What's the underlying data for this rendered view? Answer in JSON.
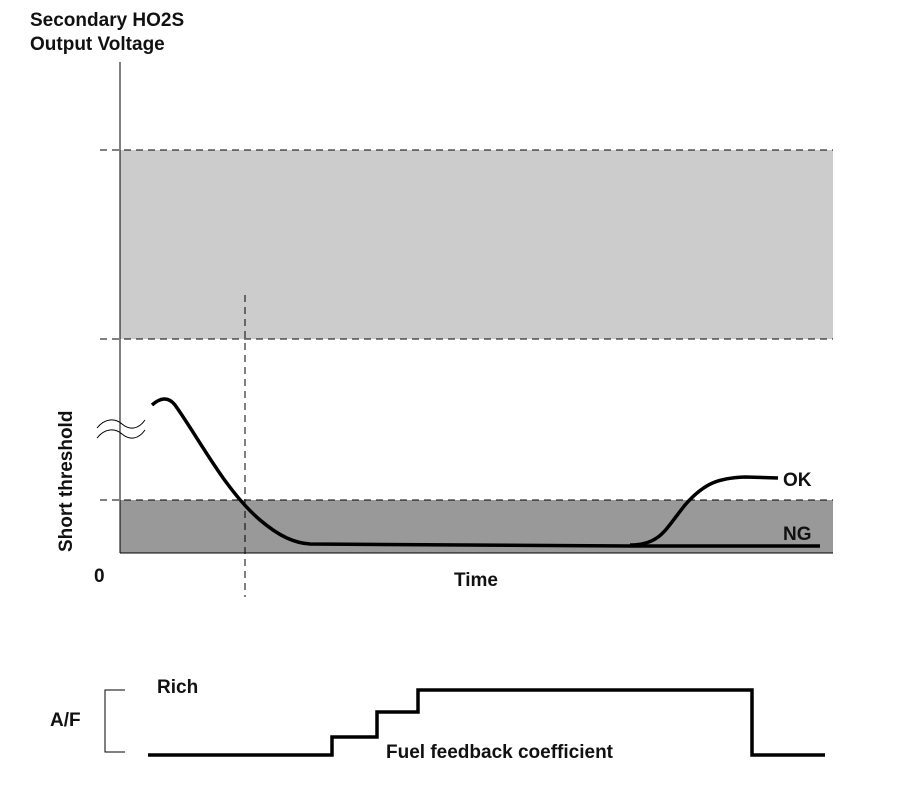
{
  "title_line1": "Secondary HO2S",
  "title_line2": "Output Voltage",
  "y_axis_label": "Short threshold",
  "origin_label": "0",
  "x_axis_label": "Time",
  "curve_ok_label": "OK",
  "curve_ng_label": "NG",
  "af_label": "A/F",
  "rich_label": "Rich",
  "fuel_label": "Fuel feedback coefficient",
  "colors": {
    "light_band": "#cccccc",
    "dark_band": "#999999",
    "line": "#000000"
  }
}
